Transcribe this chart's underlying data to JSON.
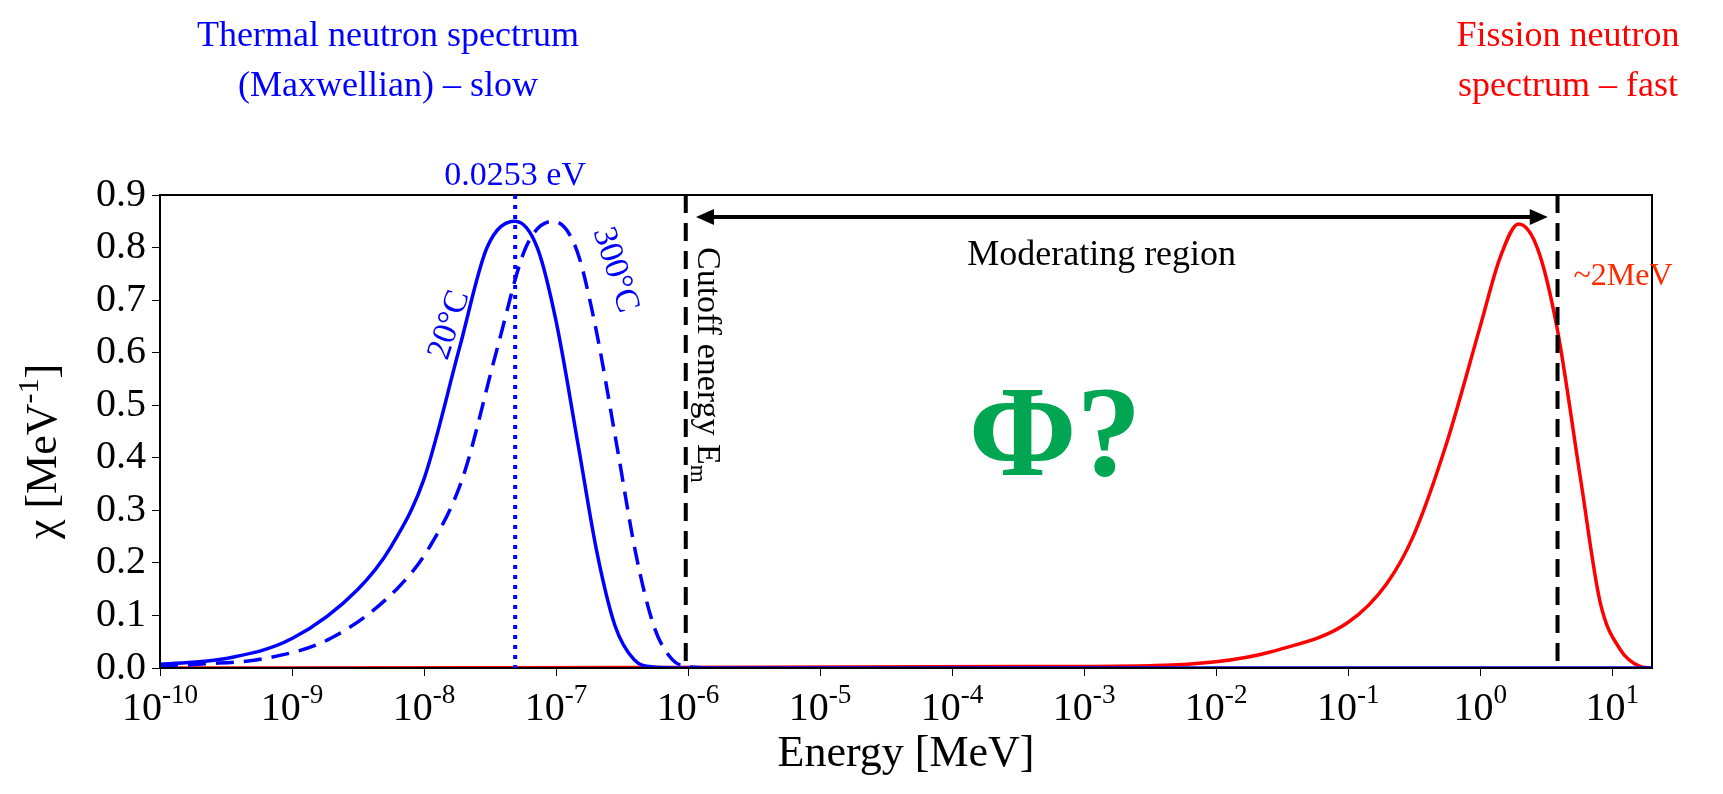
{
  "chart_data": {
    "type": "line",
    "xlabel": "Energy [MeV]",
    "ylabel": "χ [MeV$^{-1}$]",
    "log": "x",
    "legend": false,
    "marker": "none",
    "xlim": [
      1e-10,
      20
    ],
    "ylim": [
      0,
      0.9
    ],
    "xticks": [
      {
        "value": 1e-10,
        "label": "10$^{-10}$"
      },
      {
        "value": 1e-09,
        "label": "10$^{-9}$"
      },
      {
        "value": 1e-08,
        "label": "10$^{-8}$"
      },
      {
        "value": 1e-07,
        "label": "10$^{-7}$"
      },
      {
        "value": 1e-06,
        "label": "10$^{-6}$"
      },
      {
        "value": 1e-05,
        "label": "10$^{-5}$"
      },
      {
        "value": 0.0001,
        "label": "10$^{-4}$"
      },
      {
        "value": 0.001,
        "label": "10$^{-3}$"
      },
      {
        "value": 0.01,
        "label": "10$^{-2}$"
      },
      {
        "value": 0.1,
        "label": "10$^{-1}$"
      },
      {
        "value": 1,
        "label": "10$^{0}$"
      },
      {
        "value": 10,
        "label": "10$^{1}$"
      }
    ],
    "yticks": [
      {
        "value": 0,
        "label": "0.0"
      },
      {
        "value": 0.1,
        "label": "0.1"
      },
      {
        "value": 0.2,
        "label": "0.2"
      },
      {
        "value": 0.3,
        "label": "0.3"
      },
      {
        "value": 0.4,
        "label": "0.4"
      },
      {
        "value": 0.5,
        "label": "0.5"
      },
      {
        "value": 0.6,
        "label": "0.6"
      },
      {
        "value": 0.7,
        "label": "0.7"
      },
      {
        "value": 0.8,
        "label": "0.8"
      },
      {
        "value": 0.9,
        "label": "0.9"
      }
    ],
    "series": [
      {
        "name": "20°C",
        "color": "#0000ff",
        "line_style": "solid",
        "x": [
          1e-10,
          3.16e-10,
          1e-09,
          3.16e-09,
          5.6e-09,
          1e-08,
          1.86e-08,
          3e-08,
          4.9e-08,
          7.2e-08,
          1e-07,
          1.48e-07,
          2.04e-07,
          2.8e-07,
          3.9e-07,
          5.4e-07,
          1e-06,
          20
        ],
        "values": [
          0.007,
          0.018,
          0.056,
          0.15,
          0.23,
          0.36,
          0.61,
          0.8,
          0.85,
          0.8,
          0.66,
          0.42,
          0.22,
          0.08,
          0.016,
          0.002,
          0,
          0
        ]
      },
      {
        "name": "300°C",
        "color": "#0000ff",
        "line_style": "dashed",
        "x": [
          1e-10,
          1.95e-10,
          6.2e-10,
          1.95e-09,
          6.2e-09,
          1.1e-08,
          1.95e-08,
          3.6e-08,
          5.9e-08,
          9.5e-08,
          1.41e-07,
          1.95e-07,
          2.9e-07,
          4e-07,
          5.5e-07,
          7.6e-07,
          1.05e-06,
          1.5e-06
        ],
        "values": [
          0.002,
          0.007,
          0.018,
          0.056,
          0.15,
          0.23,
          0.36,
          0.61,
          0.8,
          0.85,
          0.8,
          0.66,
          0.42,
          0.22,
          0.08,
          0.016,
          0.002,
          0
        ]
      },
      {
        "color": "#ff0000",
        "line_style": "solid",
        "x": [
          1e-10,
          0.0001,
          0.001,
          0.01,
          0.03,
          0.1,
          0.195,
          0.31,
          0.56,
          1,
          1.41,
          1.95,
          2.7,
          3.8,
          5.75,
          8.1,
          11.5,
          16.2,
          19.5
        ],
        "values": [
          0,
          null,
          0.003,
          0.012,
          0.035,
          0.087,
          0.16,
          0.25,
          0.43,
          0.65,
          0.78,
          0.845,
          0.8,
          0.65,
          0.36,
          0.125,
          0.035,
          0.003,
          0
        ]
      }
    ],
    "ref_lines": [
      {
        "axis": "x",
        "value": 4.9e-08,
        "label": "0.0253 eV",
        "color": "#0000ff",
        "line_style": "dotted"
      },
      {
        "axis": "x",
        "value": 9.6e-07,
        "label": "Cutoff energy E$_{m}$",
        "color": "#000000",
        "line_style": "dashed"
      },
      {
        "axis": "x",
        "value": 3.85,
        "label": "~2MeV",
        "color": "#000000",
        "line_style": "dashed"
      }
    ],
    "annotations": [
      "Thermal neutron spectrum\n(Maxwellian) – slow",
      "Fission neutron\nspectrum – fast",
      "Moderating region",
      "Φ?"
    ]
  }
}
